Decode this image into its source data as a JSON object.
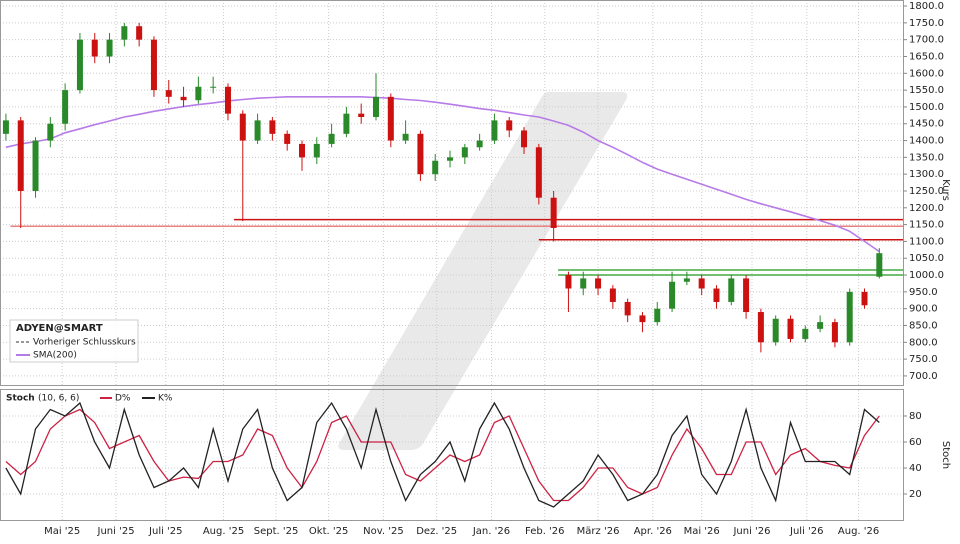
{
  "chart_data": [
    {
      "type": "candlestick",
      "title": "ADYEN@SMART",
      "prev_close_label": "Vorheriger Schlusskurs",
      "y_label": "Kurs",
      "xlim": [
        -0.4,
        60.6
      ],
      "ylim": [
        673,
        1818
      ],
      "xticks": [
        {
          "value": 3.8,
          "label": "Mai '25"
        },
        {
          "value": 7.44,
          "label": "Juni '25"
        },
        {
          "value": 10.8,
          "label": "Juli '25"
        },
        {
          "value": 14.7,
          "label": "Aug. '25"
        },
        {
          "value": 18.25,
          "label": "Sept. '25"
        },
        {
          "value": 21.8,
          "label": "Okt. '25"
        },
        {
          "value": 25.5,
          "label": "Nov. '25"
        },
        {
          "value": 29.1,
          "label": "Dez. '25"
        },
        {
          "value": 32.8,
          "label": "Jan. '26"
        },
        {
          "value": 36.4,
          "label": "Feb. '26"
        },
        {
          "value": 40.0,
          "label": "März '26"
        },
        {
          "value": 43.7,
          "label": "Apr. '26"
        },
        {
          "value": 47.0,
          "label": "Mai '26"
        },
        {
          "value": 50.4,
          "label": "Juni '26"
        },
        {
          "value": 54.1,
          "label": "Juli '26"
        },
        {
          "value": 57.6,
          "label": "Aug. '26"
        }
      ],
      "yticks": [
        {
          "value": 700,
          "label": "700.0"
        },
        {
          "value": 750,
          "label": "750.0"
        },
        {
          "value": 800,
          "label": "800.0"
        },
        {
          "value": 850,
          "label": "850.0"
        },
        {
          "value": 900,
          "label": "900.0"
        },
        {
          "value": 950,
          "label": "950.0"
        },
        {
          "value": 1000,
          "label": "1000.0"
        },
        {
          "value": 1050,
          "label": "1050.0"
        },
        {
          "value": 1100,
          "label": "1100.0"
        },
        {
          "value": 1150,
          "label": "1150.0"
        },
        {
          "value": 1200,
          "label": "1200.0"
        },
        {
          "value": 1250,
          "label": "1250.0"
        },
        {
          "value": 1300,
          "label": "1300.0"
        },
        {
          "value": 1350,
          "label": "1350.0"
        },
        {
          "value": 1400,
          "label": "1400.0"
        },
        {
          "value": 1450,
          "label": "1450.0"
        },
        {
          "value": 1500,
          "label": "1500.0"
        },
        {
          "value": 1550,
          "label": "1550.0"
        },
        {
          "value": 1600,
          "label": "1600.0"
        },
        {
          "value": 1650,
          "label": "1650.0"
        },
        {
          "value": 1700,
          "label": "1700.0"
        },
        {
          "value": 1750,
          "label": "1750.0"
        },
        {
          "value": 1800,
          "label": "1800.0"
        }
      ],
      "grid": true,
      "up_color": "#2a8a2a",
      "down_color": "#cc1111",
      "open": [
        1420,
        1460,
        1250,
        1400,
        1450,
        1550,
        1700,
        1650,
        1700,
        1740,
        1700,
        1550,
        1530,
        1520,
        1560,
        1560,
        1480,
        1400,
        1460,
        1420,
        1390,
        1350,
        1390,
        1420,
        1480,
        1470,
        1530,
        1400,
        1420,
        1300,
        1340,
        1350,
        1380,
        1400,
        1460,
        1430,
        1380,
        1230,
        1000,
        960,
        990,
        960,
        920,
        880,
        860,
        900,
        980,
        990,
        960,
        920,
        990,
        890,
        800,
        870,
        810,
        840,
        860,
        800,
        950,
        995
      ],
      "high": [
        1480,
        1470,
        1410,
        1470,
        1570,
        1720,
        1720,
        1720,
        1750,
        1750,
        1710,
        1580,
        1560,
        1590,
        1590,
        1570,
        1490,
        1480,
        1470,
        1430,
        1400,
        1410,
        1450,
        1500,
        1510,
        1600,
        1540,
        1460,
        1430,
        1360,
        1370,
        1390,
        1420,
        1480,
        1470,
        1440,
        1390,
        1250,
        1010,
        1010,
        1000,
        970,
        930,
        890,
        920,
        1010,
        1010,
        1000,
        970,
        1000,
        1000,
        900,
        880,
        880,
        850,
        880,
        870,
        960,
        960,
        1080
      ],
      "low": [
        1400,
        1140,
        1230,
        1380,
        1430,
        1540,
        1630,
        1630,
        1680,
        1680,
        1530,
        1510,
        1500,
        1510,
        1540,
        1460,
        1160,
        1390,
        1400,
        1370,
        1310,
        1330,
        1380,
        1410,
        1450,
        1460,
        1380,
        1390,
        1280,
        1280,
        1320,
        1330,
        1370,
        1390,
        1410,
        1360,
        1210,
        1100,
        890,
        940,
        940,
        900,
        860,
        830,
        850,
        890,
        970,
        940,
        900,
        910,
        870,
        770,
        790,
        800,
        800,
        830,
        785,
        790,
        900,
        990
      ],
      "close": [
        1460,
        1250,
        1400,
        1450,
        1550,
        1700,
        1650,
        1700,
        1740,
        1700,
        1550,
        1530,
        1520,
        1560,
        1560,
        1480,
        1400,
        1460,
        1420,
        1390,
        1350,
        1390,
        1420,
        1480,
        1470,
        1530,
        1400,
        1420,
        1300,
        1340,
        1350,
        1380,
        1400,
        1460,
        1430,
        1380,
        1230,
        1140,
        960,
        990,
        960,
        920,
        880,
        860,
        900,
        980,
        990,
        960,
        920,
        990,
        890,
        800,
        870,
        810,
        840,
        860,
        800,
        950,
        910,
        1065
      ],
      "series": [
        {
          "name": "SMA(200)",
          "color": "#b77be8",
          "values": [
            1380,
            1390,
            1397,
            1405,
            1423,
            1435,
            1447,
            1458,
            1470,
            1478,
            1487,
            1494,
            1501,
            1507,
            1512,
            1518,
            1522,
            1526,
            1528,
            1530,
            1530,
            1530,
            1530,
            1530,
            1530,
            1528,
            1526,
            1522,
            1519,
            1514,
            1508,
            1502,
            1495,
            1490,
            1483,
            1476,
            1470,
            1458,
            1445,
            1425,
            1400,
            1380,
            1358,
            1335,
            1315,
            1300,
            1285,
            1270,
            1255,
            1240,
            1225,
            1212,
            1200,
            1188,
            1175,
            1162,
            1148,
            1130,
            1100,
            1070
          ]
        }
      ],
      "levels": [
        {
          "value": 1165,
          "from": 15.4,
          "color": "#cc1111"
        },
        {
          "value": 1145,
          "from": 0.3,
          "color": "#e88080"
        },
        {
          "value": 1105,
          "from": 36,
          "color": "#cc1111"
        },
        {
          "value": 1015,
          "from": 37.3,
          "color": "#44aa44"
        },
        {
          "value": 1000,
          "from": 37.3,
          "color": "#44aa44"
        }
      ]
    },
    {
      "type": "line",
      "title": "Stoch",
      "params": "(10, 6, 6)",
      "y_label": "Stoch",
      "xlim": [
        -0.4,
        60.6
      ],
      "ylim": [
        0,
        100
      ],
      "yticks": [
        20,
        40,
        60,
        80
      ],
      "grid": true,
      "series": [
        {
          "name": "D%",
          "color": "#cc2244",
          "values": [
            45,
            35,
            45,
            70,
            80,
            85,
            75,
            55,
            60,
            65,
            45,
            30,
            33,
            32,
            45,
            45,
            50,
            70,
            65,
            40,
            25,
            45,
            75,
            80,
            60,
            60,
            60,
            35,
            30,
            40,
            50,
            45,
            50,
            75,
            80,
            55,
            30,
            15,
            15,
            25,
            40,
            40,
            25,
            20,
            25,
            50,
            70,
            55,
            35,
            35,
            60,
            60,
            35,
            50,
            55,
            45,
            42,
            40,
            65,
            80
          ]
        },
        {
          "name": "K%",
          "color": "#222222",
          "values": [
            40,
            20,
            70,
            85,
            80,
            90,
            60,
            40,
            85,
            50,
            25,
            30,
            40,
            25,
            70,
            30,
            70,
            85,
            40,
            15,
            25,
            75,
            90,
            70,
            40,
            85,
            45,
            15,
            35,
            45,
            60,
            30,
            70,
            90,
            70,
            40,
            15,
            10,
            20,
            30,
            50,
            35,
            15,
            20,
            35,
            65,
            80,
            35,
            20,
            45,
            85,
            40,
            15,
            75,
            45,
            45,
            45,
            35,
            85,
            75
          ]
        }
      ]
    }
  ]
}
